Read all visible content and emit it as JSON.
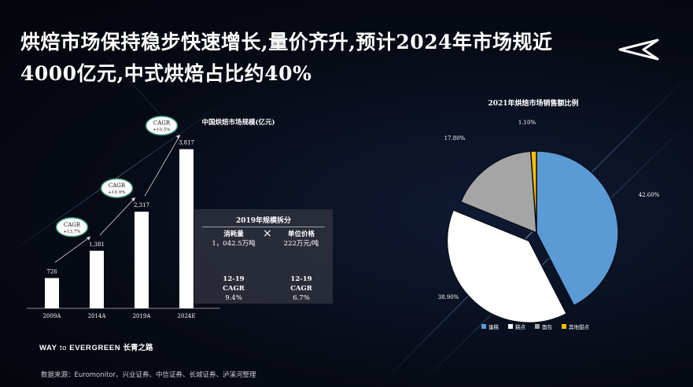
{
  "title": "烘焙市场保持稳步快速增长,量价齐升,预计2024年市场规近4000亿元,中式烘焙占比约40%",
  "brand": {
    "prefix": "WAY",
    "to": "to",
    "name": "EVERGREEN",
    "cn": "长青之路"
  },
  "source": "数据来源：Euromonitor、兴业证券、中信证券、长城证券、泸溪河整理",
  "breakdown": {
    "heading": "2019年规模拆分",
    "left_label": "消耗量",
    "left_value": "1，042.5万吨",
    "operator": "×",
    "right_label": "单位价格",
    "right_value": "222万元/吨",
    "cagr_left_period": "12-19",
    "cagr_left_label": "CAGR",
    "cagr_left_value": "9.4%",
    "cagr_right_period": "12-19",
    "cagr_right_label": "CAGR",
    "cagr_right_value": "6.7%"
  },
  "chart_data": [
    {
      "type": "bar",
      "title": "中国烘焙市场规模(亿元)",
      "categories": [
        "2009A",
        "2014A",
        "2019A",
        "2024E"
      ],
      "values": [
        726,
        1381,
        2317,
        3817
      ],
      "value_labels": [
        "726",
        "1,381",
        "2,317",
        "3,817"
      ],
      "ylim": [
        0,
        4000
      ],
      "grid": false,
      "annotations": [
        {
          "label": "CAGR",
          "value": "+13.7%"
        },
        {
          "label": "CAGR",
          "value": "+10.9%"
        },
        {
          "label": "CAGR",
          "value": "+10.5%"
        }
      ],
      "colors": {
        "bar": "#ffffff",
        "bubble": "#ffffff",
        "bubble_border": "#2f8a6c"
      }
    },
    {
      "type": "pie",
      "title": "2021年烘焙市场销售额比例",
      "labels": [
        "蛋糕",
        "糕点",
        "面包",
        "其他甜点"
      ],
      "values": [
        42.6,
        38.9,
        17.8,
        1.1
      ],
      "value_labels": [
        "42.60%",
        "38.90%",
        "17.80%",
        "1.10%"
      ],
      "colors": [
        "#5b9bd5",
        "#ffffff",
        "#a5a5a5",
        "#ffc000"
      ],
      "exploded": "糕点",
      "legend": "bottom"
    }
  ]
}
